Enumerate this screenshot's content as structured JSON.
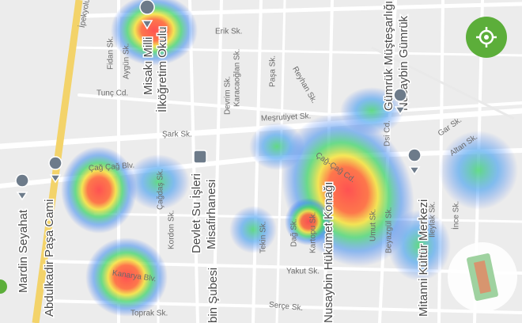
{
  "labels": {
    "ipekyolu": "İpekyolu Cd.",
    "fidan": "Fidan Sk.",
    "aygun": "Aygün Sk.",
    "misak1": "Misakı Milli",
    "misak2": "İlköğretim Okulu",
    "erik": "Erik Sk.",
    "tunc": "Tunç Cd.",
    "devrim": "Devrim Sk.",
    "karacaoglan": "Karacaoğlan Sk.",
    "pasa": "Paşa Sk.",
    "reyhan": "Reyhan Sk.",
    "mesrutiyet": "Meşrutiyet Sk.",
    "gumruk1": "Gümrük Müşteşarlığı",
    "gumruk2": "Nusaybin Gümrük",
    "dsi": "Dsi Cd.",
    "gar": "Gar Sk.",
    "altan": "Altan Sk.",
    "sark": "Şark Sk.",
    "cagcagblv": "Çağ Çağ Blv.",
    "cagcagcd": "Çağ-Çağ Cd.",
    "dsi1": "Devlet Su İşleri",
    "dsi2": "Misafirhanesi",
    "cagdas": "Çağdaş Sk.",
    "kordon": "Kordon Sk.",
    "mardin": "Mardin Seyahat",
    "abdulkadir": "Abdulkadir Paşa Cami",
    "tekin": "Tekin Sk.",
    "dag": "Dağ Sk.",
    "kartopu": "Kartopu Sk.",
    "hukumet": "Nusaybin Hükümet Konağı",
    "umut": "Umut Sk.",
    "beyazgul": "Beyazgül Sk.",
    "mitanni": "Mitanni Kültür Merkezi",
    "ileylak": "İleylak Sk.",
    "ince": "İnce Sk.",
    "yakut": "Yakut Sk.",
    "kanarya": "Kanarya Blv.",
    "toprak": "Toprak Sk.",
    "serce": "Serçe Sk.",
    "sube": "bin Şubesi"
  }
}
